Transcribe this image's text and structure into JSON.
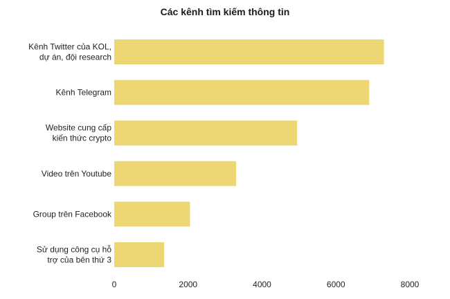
{
  "chart_data": {
    "type": "bar",
    "orientation": "horizontal",
    "title": "Các kênh tìm kiếm thông tin",
    "categories": [
      [
        "Kênh Twitter của KOL,",
        "dự án, đội research"
      ],
      [
        "Kênh Telegram"
      ],
      [
        "Website cung cấp",
        "kiến thức crypto"
      ],
      [
        "Video trên Youtube"
      ],
      [
        "Group trên Facebook"
      ],
      [
        "Sử dụng công cụ hỗ",
        "trợ của bên thứ 3"
      ]
    ],
    "values": [
      7300,
      6900,
      4950,
      3300,
      2050,
      1350
    ],
    "xlim": [
      0,
      8000
    ],
    "xticks": [
      0,
      2000,
      4000,
      6000,
      8000
    ],
    "bar_color": "#EDD774",
    "grid": false
  }
}
